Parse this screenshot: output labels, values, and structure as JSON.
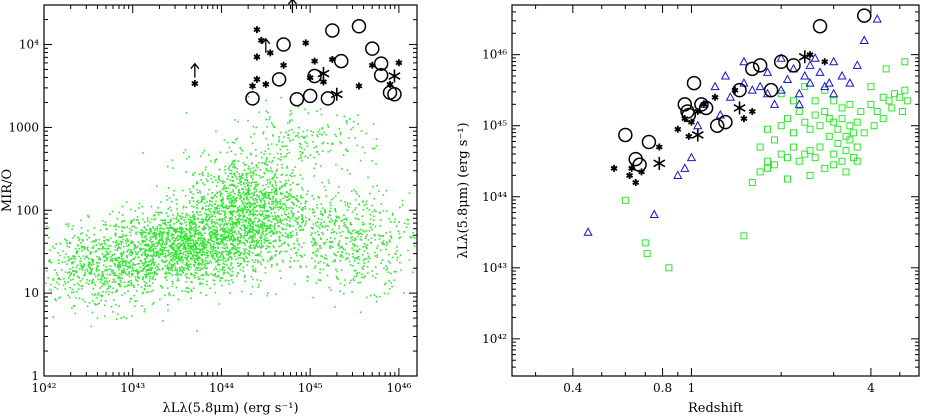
{
  "chart_data": [
    {
      "type": "scatter",
      "xlabel": "λLλ(5.8μm) (erg s⁻¹)",
      "ylabel": "MIR/O",
      "xscale": "log",
      "yscale": "log",
      "xlim": [
        1e+42,
        1.6e+46
      ],
      "ylim": [
        1,
        30000
      ],
      "xticklabels": [
        "10⁴²",
        "10⁴³",
        "10⁴⁴",
        "10⁴⁵",
        "10⁴⁶"
      ],
      "yticklabels": [
        "1",
        "10",
        "100",
        "1000",
        "10⁴"
      ],
      "series": [
        {
          "marker": "dot",
          "color": "#2ee62e",
          "clouds": [
            {
              "cx": 43.6,
              "cy": 1.55,
              "sx": 0.45,
              "sy": 0.22,
              "n": 1500
            },
            {
              "cx": 44.3,
              "cy": 2.0,
              "sx": 0.35,
              "sy": 0.33,
              "n": 1400
            },
            {
              "cx": 42.7,
              "cy": 1.3,
              "sx": 0.4,
              "sy": 0.25,
              "n": 700
            },
            {
              "cx": 45.5,
              "cy": 1.65,
              "sx": 0.35,
              "sy": 0.3,
              "n": 500
            },
            {
              "cx": 44.9,
              "cy": 2.8,
              "sx": 0.4,
              "sy": 0.2,
              "n": 200
            }
          ]
        },
        {
          "marker": "asterisk",
          "color": "#000",
          "points": [
            [
              44.45,
              4.05
            ],
            [
              44.4,
              4.18
            ],
            [
              44.4,
              3.85
            ],
            [
              44.55,
              3.9
            ],
            [
              44.7,
              3.75
            ],
            [
              44.95,
              4.02
            ],
            [
              45.05,
              3.8
            ],
            [
              45.15,
              3.55
            ],
            [
              45.0,
              3.6
            ],
            [
              44.35,
              3.5
            ],
            [
              44.4,
              3.58
            ],
            [
              45.25,
              3.82
            ],
            [
              45.55,
              3.5
            ],
            [
              45.7,
              3.75
            ],
            [
              45.9,
              3.52
            ],
            [
              46.0,
              3.78
            ],
            [
              43.7,
              3.53
            ],
            [
              44.5,
              3.52
            ]
          ]
        },
        {
          "marker": "asterisk-large",
          "color": "#000",
          "points": [
            [
              45.15,
              3.65
            ],
            [
              45.95,
              3.62
            ],
            [
              45.3,
              3.4
            ]
          ]
        },
        {
          "marker": "circle",
          "color": "#000",
          "points": [
            [
              44.7,
              4.0
            ],
            [
              45.05,
              3.62
            ],
            [
              45.2,
              3.35
            ],
            [
              44.85,
              3.34
            ],
            [
              44.65,
              3.58
            ],
            [
              45.35,
              3.8
            ],
            [
              45.55,
              4.22
            ],
            [
              45.7,
              3.95
            ],
            [
              45.8,
              3.63
            ],
            [
              45.9,
              3.42
            ],
            [
              45.95,
              3.4
            ],
            [
              44.35,
              3.35
            ],
            [
              45.0,
              3.38
            ],
            [
              45.25,
              4.17
            ],
            [
              45.8,
              3.77
            ]
          ]
        },
        {
          "marker": "arrow-up",
          "color": "#000",
          "points": [
            [
              43.7,
              3.6
            ],
            [
              44.5,
              3.9
            ],
            [
              44.8,
              4.38
            ]
          ]
        }
      ]
    },
    {
      "type": "scatter",
      "xlabel": "Redshift",
      "ylabel": "λLλ(5.8μm) (erg s⁻¹)",
      "xscale": "log",
      "yscale": "log",
      "xlim": [
        0.25,
        5.8
      ],
      "ylim": [
        3e+41,
        5e+46
      ],
      "xticklabels": [
        "0.4",
        "0.8",
        "1",
        "4"
      ],
      "yticklabels": [
        "10⁴²",
        "10⁴³",
        "10⁴⁴",
        "10⁴⁵",
        "10⁴⁶"
      ],
      "series": [
        {
          "marker": "square",
          "color": "#2ee62e",
          "points": [
            [
              0.6,
              43.95
            ],
            [
              0.7,
              43.35
            ],
            [
              0.71,
              43.2
            ],
            [
              0.84,
              43.0
            ],
            [
              1.5,
              43.45
            ],
            [
              1.6,
              44.2
            ],
            [
              1.7,
              44.35
            ],
            [
              1.8,
              44.4
            ],
            [
              1.9,
              44.45
            ],
            [
              2.0,
              44.6
            ],
            [
              2.1,
              44.25
            ],
            [
              2.2,
              44.7
            ],
            [
              2.3,
              44.5
            ],
            [
              2.4,
              44.6
            ],
            [
              2.5,
              44.3
            ],
            [
              2.6,
              44.55
            ],
            [
              2.7,
              44.7
            ],
            [
              2.8,
              44.4
            ],
            [
              2.9,
              44.85
            ],
            [
              3.0,
              44.6
            ],
            [
              3.1,
              44.75
            ],
            [
              3.2,
              44.5
            ],
            [
              3.3,
              44.65
            ],
            [
              3.4,
              44.8
            ],
            [
              3.5,
              44.55
            ],
            [
              3.6,
              45.05
            ],
            [
              3.7,
              45.2
            ],
            [
              3.8,
              44.9
            ],
            [
              4.0,
              45.3
            ],
            [
              4.2,
              45.2
            ],
            [
              4.4,
              45.4
            ],
            [
              4.6,
              45.35
            ],
            [
              4.8,
              45.45
            ],
            [
              5.0,
              45.4
            ],
            [
              5.2,
              45.5
            ],
            [
              5.3,
              45.35
            ],
            [
              1.7,
              44.7
            ],
            [
              1.8,
              44.95
            ],
            [
              1.9,
              44.8
            ],
            [
              2.0,
              45.0
            ],
            [
              2.1,
              45.1
            ],
            [
              2.2,
              44.9
            ],
            [
              2.3,
              45.2
            ],
            [
              2.4,
              45.05
            ],
            [
              2.5,
              44.95
            ],
            [
              2.6,
              45.15
            ],
            [
              2.7,
              45.0
            ],
            [
              2.8,
              45.2
            ],
            [
              2.9,
              45.1
            ],
            [
              3.0,
              45.05
            ],
            [
              3.1,
              44.95
            ],
            [
              3.2,
              45.1
            ],
            [
              3.3,
              44.85
            ],
            [
              3.4,
              45.0
            ],
            [
              3.5,
              44.9
            ],
            [
              3.6,
              44.7
            ],
            [
              2.0,
              45.45
            ],
            [
              2.2,
              45.35
            ],
            [
              2.4,
              45.55
            ],
            [
              2.6,
              45.35
            ],
            [
              2.8,
              45.5
            ],
            [
              3.0,
              45.35
            ],
            [
              3.2,
              45.25
            ],
            [
              3.4,
              45.3
            ],
            [
              4.0,
              45.55
            ],
            [
              4.5,
              45.8
            ],
            [
              5.2,
              45.9
            ],
            [
              1.8,
              44.5
            ],
            [
              2.1,
              44.55
            ],
            [
              2.5,
              44.65
            ],
            [
              3.0,
              44.45
            ],
            [
              3.3,
              44.35
            ],
            [
              3.6,
              44.5
            ],
            [
              4.1,
              45.0
            ],
            [
              4.4,
              45.1
            ],
            [
              4.7,
              45.25
            ],
            [
              5.1,
              45.2
            ]
          ]
        },
        {
          "marker": "triangle",
          "color": "#1515cc",
          "points": [
            [
              0.45,
              43.5
            ],
            [
              0.75,
              43.75
            ],
            [
              0.95,
              44.4
            ],
            [
              1.0,
              44.55
            ],
            [
              1.05,
              45.0
            ],
            [
              1.1,
              45.3
            ],
            [
              1.2,
              45.55
            ],
            [
              1.3,
              45.7
            ],
            [
              1.35,
              45.4
            ],
            [
              1.5,
              45.6
            ],
            [
              1.6,
              45.5
            ],
            [
              1.7,
              45.55
            ],
            [
              1.8,
              45.75
            ],
            [
              1.9,
              45.3
            ],
            [
              2.0,
              45.5
            ],
            [
              2.1,
              45.65
            ],
            [
              2.2,
              45.8
            ],
            [
              2.3,
              45.45
            ],
            [
              2.4,
              45.7
            ],
            [
              2.5,
              45.85
            ],
            [
              2.6,
              45.95
            ],
            [
              2.7,
              45.75
            ],
            [
              2.8,
              45.55
            ],
            [
              2.9,
              45.6
            ],
            [
              3.0,
              45.9
            ],
            [
              3.2,
              45.7
            ],
            [
              3.4,
              45.6
            ],
            [
              3.6,
              45.85
            ],
            [
              3.8,
              46.2
            ],
            [
              4.2,
              46.5
            ],
            [
              1.5,
              45.9
            ],
            [
              2.0,
              45.95
            ],
            [
              2.5,
              45.6
            ],
            [
              3.0,
              45.45
            ],
            [
              1.25,
              45.15
            ],
            [
              1.8,
              45.45
            ],
            [
              2.3,
              45.3
            ],
            [
              0.9,
              44.3
            ]
          ]
        },
        {
          "marker": "asterisk",
          "color": "#000",
          "points": [
            [
              0.55,
              44.4
            ],
            [
              0.62,
              44.3
            ],
            [
              0.63,
              44.4
            ],
            [
              0.65,
              44.2
            ],
            [
              0.68,
              44.35
            ],
            [
              0.78,
              44.7
            ],
            [
              0.9,
              44.95
            ],
            [
              0.95,
              45.1
            ],
            [
              1.0,
              45.05
            ],
            [
              1.05,
              45.2
            ],
            [
              1.1,
              45.3
            ],
            [
              1.4,
              45.5
            ],
            [
              1.5,
              45.1
            ],
            [
              1.6,
              45.2
            ],
            [
              2.5,
              46.0
            ],
            [
              2.8,
              45.9
            ],
            [
              0.98,
              44.85
            ],
            [
              1.2,
              45.4
            ]
          ]
        },
        {
          "marker": "asterisk-large",
          "color": "#000",
          "points": [
            [
              0.78,
              44.47
            ],
            [
              1.05,
              44.87
            ],
            [
              1.45,
              45.25
            ],
            [
              2.4,
              45.97
            ]
          ]
        },
        {
          "marker": "circle",
          "color": "#000",
          "points": [
            [
              0.6,
              44.87
            ],
            [
              0.65,
              44.53
            ],
            [
              0.67,
              44.45
            ],
            [
              0.72,
              44.77
            ],
            [
              0.95,
              45.3
            ],
            [
              0.97,
              45.2
            ],
            [
              0.98,
              45.15
            ],
            [
              1.02,
              45.6
            ],
            [
              1.08,
              45.3
            ],
            [
              1.12,
              45.25
            ],
            [
              1.22,
              45.0
            ],
            [
              1.3,
              45.05
            ],
            [
              1.45,
              45.5
            ],
            [
              1.6,
              45.8
            ],
            [
              1.7,
              45.85
            ],
            [
              1.85,
              45.5
            ],
            [
              2.0,
              45.9
            ],
            [
              2.2,
              45.85
            ],
            [
              2.7,
              46.4
            ],
            [
              3.8,
              46.55
            ]
          ]
        }
      ]
    }
  ]
}
